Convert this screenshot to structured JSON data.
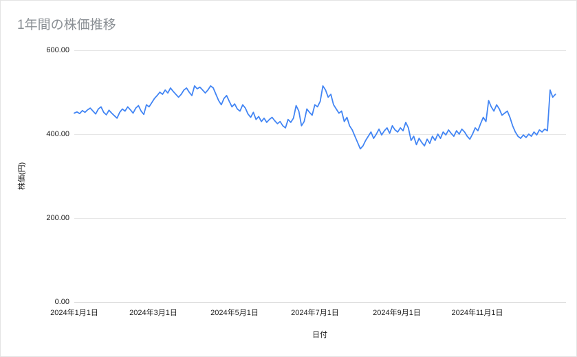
{
  "chart_data": {
    "type": "line",
    "title": "1年間の株価推移",
    "xlabel": "日付",
    "ylabel": "株価(円)",
    "ylim": [
      0,
      600
    ],
    "grid": "horizontal",
    "legend": "none",
    "line_color": "#4285f4",
    "y_ticks": [
      "600.00",
      "400.00",
      "200.00",
      "0.00"
    ],
    "y_tick_values": [
      600,
      400,
      200,
      0
    ],
    "x_ticks": [
      "2024年1月1日",
      "2024年3月1日",
      "2024年5月1日",
      "2024年7月1日",
      "2024年9月1日",
      "2024年11月1日"
    ],
    "x_tick_days": [
      0,
      60,
      121,
      182,
      244,
      305
    ],
    "domain_days": [
      0,
      372
    ],
    "series": [
      {
        "name": "株価",
        "color": "#4285f4",
        "values": [
          450,
          453,
          449,
          456,
          452,
          458,
          462,
          455,
          448,
          460,
          465,
          452,
          446,
          457,
          450,
          444,
          438,
          452,
          460,
          455,
          465,
          458,
          450,
          462,
          468,
          455,
          447,
          470,
          465,
          475,
          485,
          492,
          500,
          495,
          505,
          498,
          510,
          502,
          495,
          488,
          495,
          505,
          510,
          500,
          492,
          515,
          508,
          512,
          505,
          498,
          505,
          515,
          510,
          495,
          480,
          470,
          485,
          492,
          478,
          465,
          472,
          460,
          455,
          470,
          462,
          448,
          440,
          452,
          435,
          442,
          430,
          438,
          428,
          435,
          440,
          432,
          425,
          430,
          420,
          415,
          435,
          428,
          438,
          468,
          455,
          420,
          430,
          460,
          452,
          445,
          470,
          465,
          478,
          515,
          505,
          488,
          495,
          470,
          460,
          450,
          455,
          430,
          440,
          420,
          410,
          395,
          380,
          365,
          372,
          385,
          395,
          405,
          390,
          400,
          412,
          398,
          408,
          415,
          402,
          420,
          410,
          405,
          415,
          408,
          428,
          415,
          385,
          395,
          375,
          390,
          380,
          372,
          388,
          378,
          395,
          385,
          400,
          390,
          405,
          398,
          410,
          402,
          395,
          408,
          400,
          412,
          405,
          395,
          388,
          400,
          415,
          408,
          425,
          440,
          430,
          480,
          465,
          455,
          470,
          460,
          445,
          450,
          455,
          440,
          420,
          405,
          395,
          390,
          398,
          392,
          400,
          395,
          405,
          398,
          410,
          405,
          412,
          408,
          505,
          488,
          495
        ]
      }
    ]
  }
}
